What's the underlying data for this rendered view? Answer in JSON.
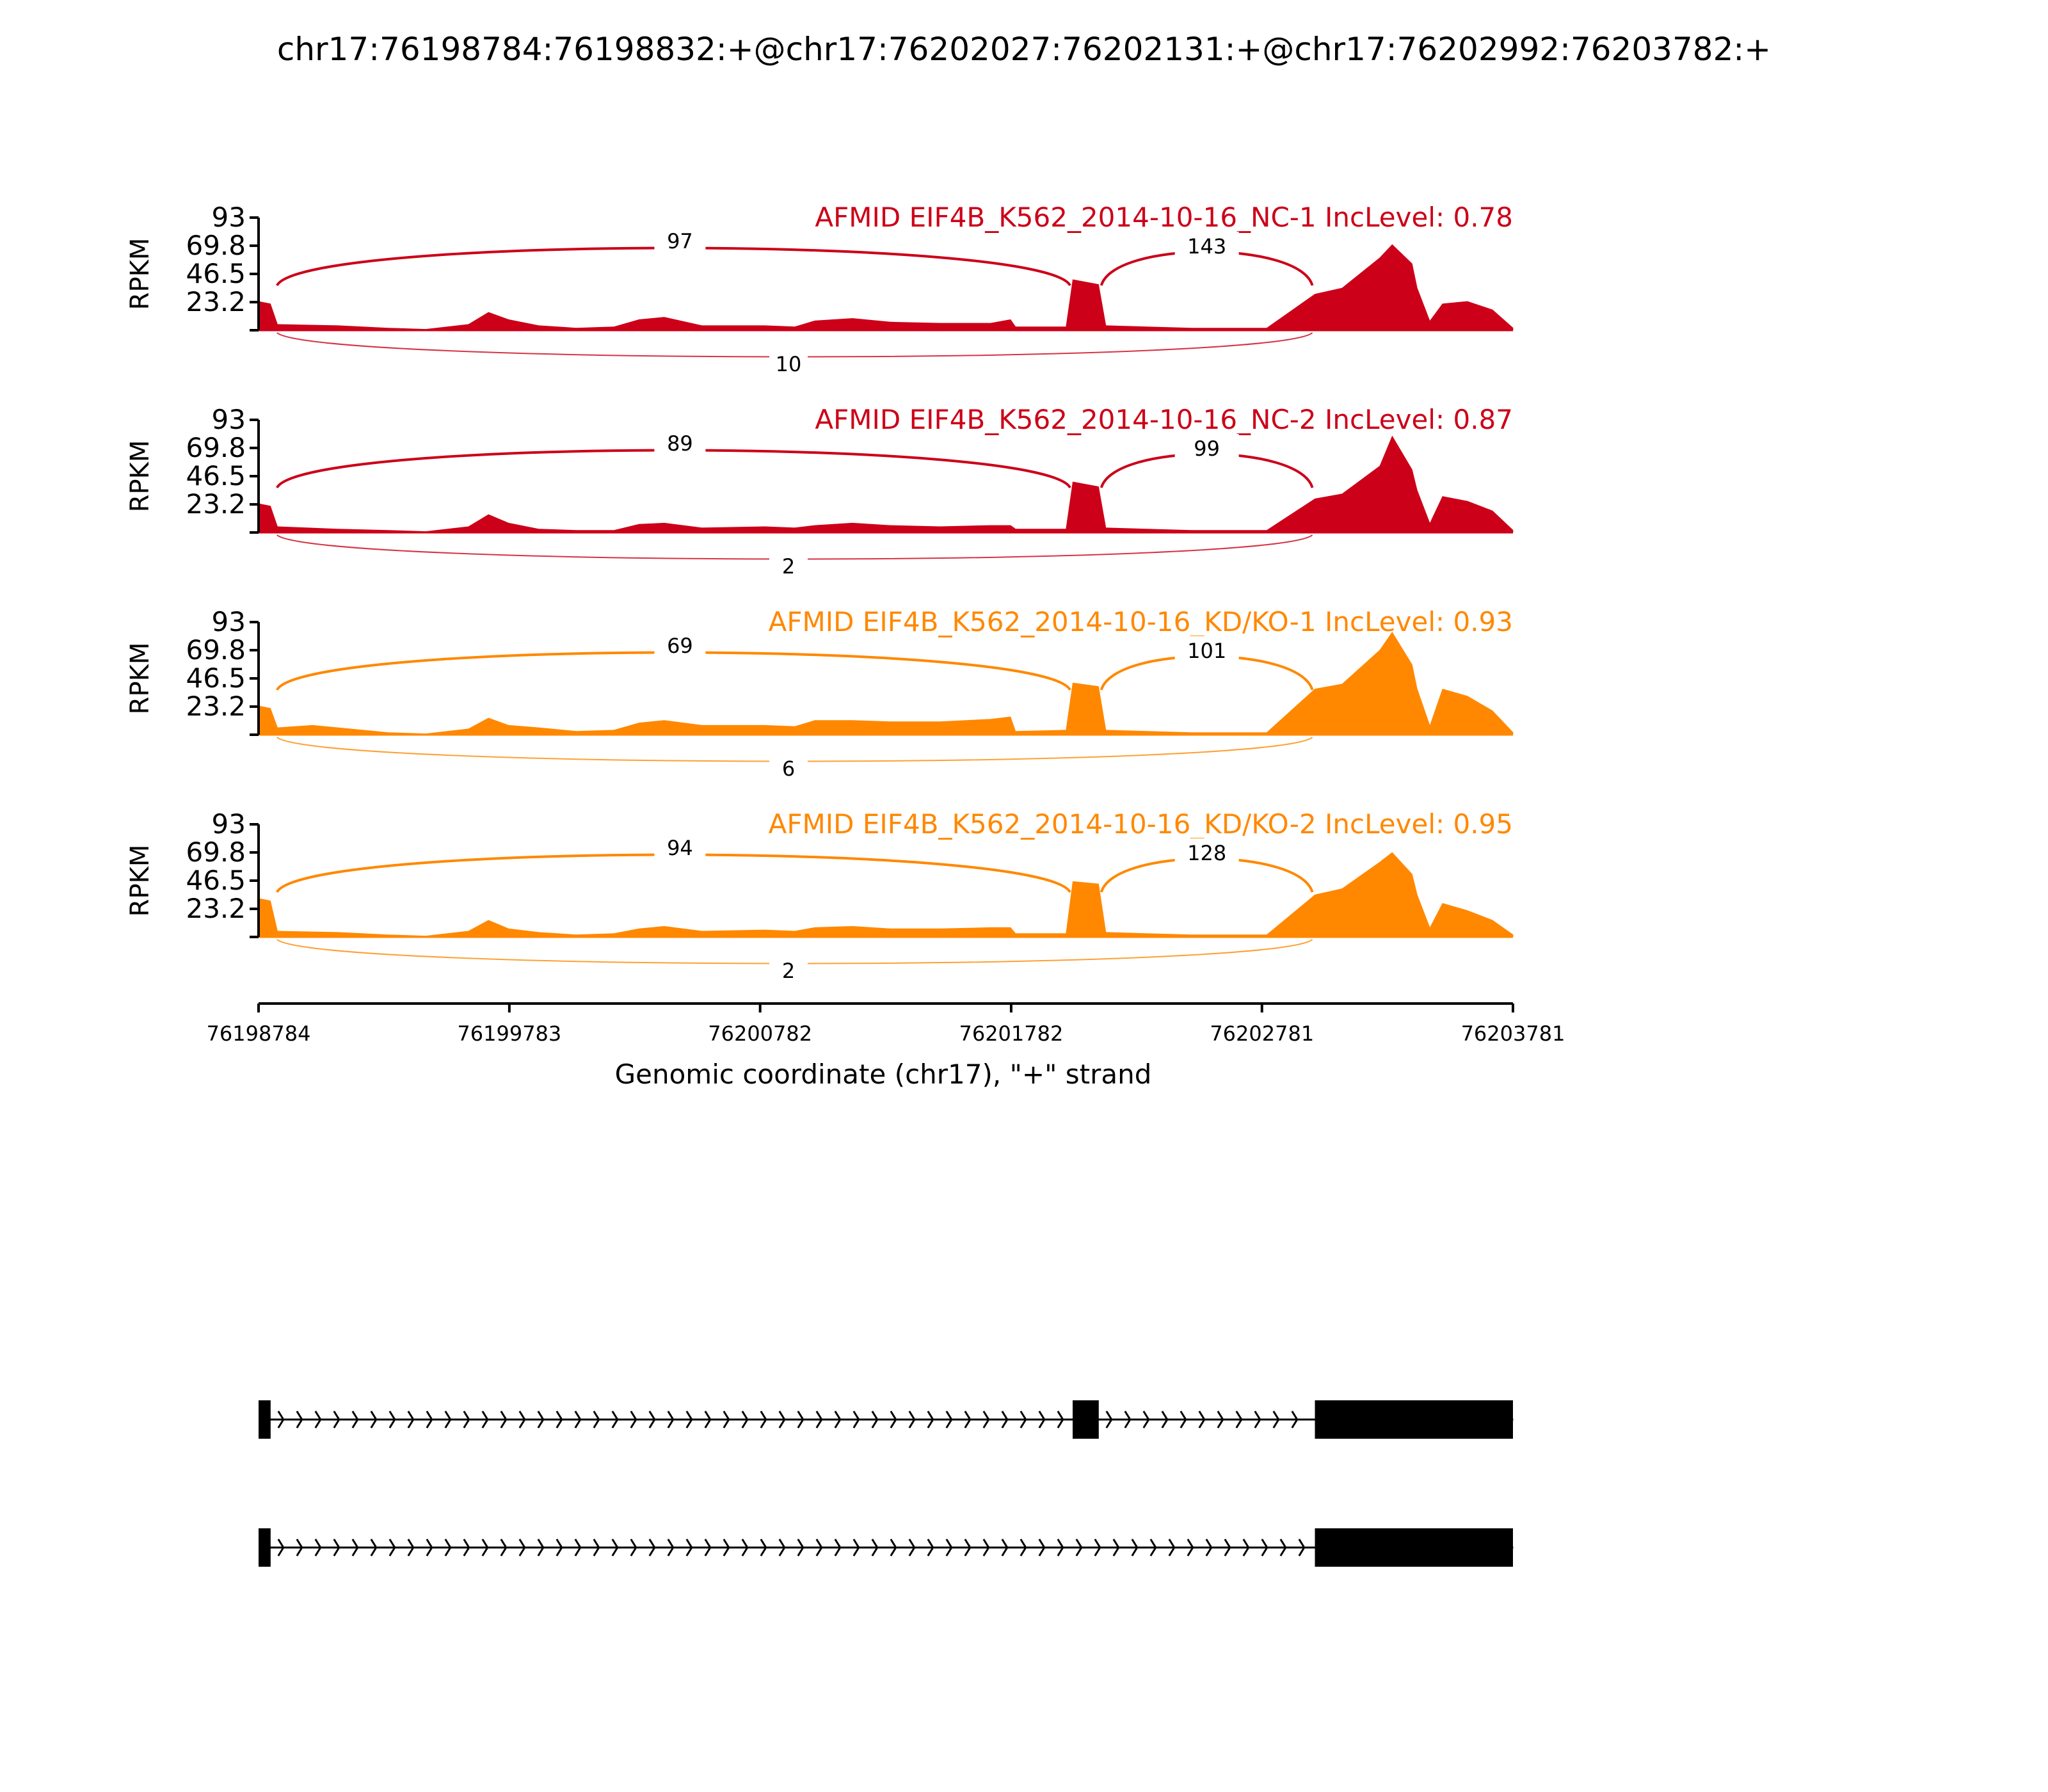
{
  "chart_data": {
    "type": "area",
    "title": "chr17:76198784:76198832:+@chr17:76202027:76202131:+@chr17:76202992:76203782:+",
    "ylabel": "RPKM",
    "xlabel": "Genomic coordinate (chr17), \"+\" strand",
    "xlim": [
      76198784,
      76203781
    ],
    "ylim": [
      0,
      93
    ],
    "yticks": [
      "93",
      "69.8",
      "46.5",
      "23.2"
    ],
    "xticks": [
      "76198784",
      "76199783",
      "76200782",
      "76201782",
      "76202781",
      "76203781"
    ],
    "exons": [
      {
        "start": 76198784,
        "end": 76198832
      },
      {
        "start": 76202027,
        "end": 76202131
      },
      {
        "start": 76202992,
        "end": 76203782
      }
    ],
    "colors": {
      "NC": "#cc0018",
      "KD": "#ff8800",
      "gene": "#000000"
    },
    "tracks": [
      {
        "name": "AFMID EIF4B_K562_2014-10-16_NC-1 IncLevel: 0.78",
        "color": "#cc0018",
        "junctions": {
          "skip": "97",
          "inc": "143",
          "exc": "10"
        },
        "coverage": [
          [
            76198784,
            24
          ],
          [
            76198832,
            22
          ],
          [
            76198860,
            5
          ],
          [
            76199100,
            4
          ],
          [
            76199300,
            2
          ],
          [
            76199450,
            1
          ],
          [
            76199620,
            5
          ],
          [
            76199700,
            15
          ],
          [
            76199780,
            9
          ],
          [
            76199900,
            4
          ],
          [
            76200050,
            2
          ],
          [
            76200200,
            3
          ],
          [
            76200300,
            9
          ],
          [
            76200400,
            11
          ],
          [
            76200550,
            4
          ],
          [
            76200800,
            4
          ],
          [
            76200920,
            3
          ],
          [
            76201000,
            8
          ],
          [
            76201150,
            10
          ],
          [
            76201300,
            7
          ],
          [
            76201500,
            6
          ],
          [
            76201700,
            6
          ],
          [
            76201780,
            9
          ],
          [
            76201800,
            3
          ],
          [
            76202000,
            3
          ],
          [
            76202027,
            42
          ],
          [
            76202131,
            38
          ],
          [
            76202160,
            4
          ],
          [
            76202500,
            2
          ],
          [
            76202800,
            2
          ],
          [
            76202992,
            30
          ],
          [
            76203100,
            35
          ],
          [
            76203250,
            60
          ],
          [
            76203300,
            71
          ],
          [
            76203380,
            55
          ],
          [
            76203400,
            35
          ],
          [
            76203450,
            8
          ],
          [
            76203500,
            22
          ],
          [
            76203600,
            24
          ],
          [
            76203700,
            17
          ],
          [
            76203782,
            2
          ]
        ]
      },
      {
        "name": "AFMID EIF4B_K562_2014-10-16_NC-2 IncLevel: 0.87",
        "color": "#cc0018",
        "junctions": {
          "skip": "89",
          "inc": "99",
          "exc": "2"
        },
        "coverage": [
          [
            76198784,
            24
          ],
          [
            76198832,
            22
          ],
          [
            76198860,
            5
          ],
          [
            76199100,
            3
          ],
          [
            76199300,
            2
          ],
          [
            76199450,
            1
          ],
          [
            76199620,
            5
          ],
          [
            76199700,
            15
          ],
          [
            76199780,
            8
          ],
          [
            76199900,
            3
          ],
          [
            76200050,
            2
          ],
          [
            76200200,
            2
          ],
          [
            76200300,
            7
          ],
          [
            76200400,
            8
          ],
          [
            76200550,
            4
          ],
          [
            76200800,
            5
          ],
          [
            76200920,
            4
          ],
          [
            76201000,
            6
          ],
          [
            76201150,
            8
          ],
          [
            76201300,
            6
          ],
          [
            76201500,
            5
          ],
          [
            76201700,
            6
          ],
          [
            76201780,
            6
          ],
          [
            76201800,
            3
          ],
          [
            76202000,
            3
          ],
          [
            76202027,
            42
          ],
          [
            76202131,
            38
          ],
          [
            76202160,
            4
          ],
          [
            76202500,
            2
          ],
          [
            76202800,
            2
          ],
          [
            76202992,
            28
          ],
          [
            76203100,
            32
          ],
          [
            76203250,
            55
          ],
          [
            76203300,
            80
          ],
          [
            76203380,
            52
          ],
          [
            76203400,
            35
          ],
          [
            76203450,
            8
          ],
          [
            76203500,
            30
          ],
          [
            76203600,
            26
          ],
          [
            76203700,
            18
          ],
          [
            76203782,
            2
          ]
        ]
      },
      {
        "name": "AFMID EIF4B_K562_2014-10-16_KD/KO-1 IncLevel: 0.93",
        "color": "#ff8800",
        "junctions": {
          "skip": "69",
          "inc": "101",
          "exc": "6"
        },
        "coverage": [
          [
            76198784,
            24
          ],
          [
            76198832,
            22
          ],
          [
            76198860,
            6
          ],
          [
            76199000,
            8
          ],
          [
            76199100,
            6
          ],
          [
            76199300,
            2
          ],
          [
            76199450,
            1
          ],
          [
            76199620,
            5
          ],
          [
            76199700,
            14
          ],
          [
            76199780,
            8
          ],
          [
            76199900,
            6
          ],
          [
            76200050,
            3
          ],
          [
            76200200,
            4
          ],
          [
            76200300,
            10
          ],
          [
            76200400,
            12
          ],
          [
            76200550,
            8
          ],
          [
            76200800,
            8
          ],
          [
            76200920,
            7
          ],
          [
            76201000,
            12
          ],
          [
            76201150,
            12
          ],
          [
            76201300,
            11
          ],
          [
            76201500,
            11
          ],
          [
            76201700,
            13
          ],
          [
            76201780,
            15
          ],
          [
            76201800,
            3
          ],
          [
            76202000,
            4
          ],
          [
            76202027,
            43
          ],
          [
            76202131,
            40
          ],
          [
            76202160,
            4
          ],
          [
            76202500,
            2
          ],
          [
            76202800,
            2
          ],
          [
            76202992,
            38
          ],
          [
            76203100,
            42
          ],
          [
            76203250,
            70
          ],
          [
            76203300,
            85
          ],
          [
            76203380,
            58
          ],
          [
            76203400,
            38
          ],
          [
            76203450,
            8
          ],
          [
            76203500,
            38
          ],
          [
            76203600,
            32
          ],
          [
            76203700,
            20
          ],
          [
            76203782,
            2
          ]
        ]
      },
      {
        "name": "AFMID EIF4B_K562_2014-10-16_KD/KO-2 IncLevel: 0.95",
        "color": "#ff8800",
        "junctions": {
          "skip": "94",
          "inc": "128",
          "exc": "2"
        },
        "coverage": [
          [
            76198784,
            32
          ],
          [
            76198832,
            30
          ],
          [
            76198860,
            5
          ],
          [
            76199100,
            4
          ],
          [
            76199300,
            2
          ],
          [
            76199450,
            1
          ],
          [
            76199620,
            5
          ],
          [
            76199700,
            14
          ],
          [
            76199780,
            7
          ],
          [
            76199900,
            4
          ],
          [
            76200050,
            2
          ],
          [
            76200200,
            3
          ],
          [
            76200300,
            7
          ],
          [
            76200400,
            9
          ],
          [
            76200550,
            5
          ],
          [
            76200800,
            6
          ],
          [
            76200920,
            5
          ],
          [
            76201000,
            8
          ],
          [
            76201150,
            9
          ],
          [
            76201300,
            7
          ],
          [
            76201500,
            7
          ],
          [
            76201700,
            8
          ],
          [
            76201780,
            8
          ],
          [
            76201800,
            3
          ],
          [
            76202000,
            3
          ],
          [
            76202027,
            46
          ],
          [
            76202131,
            44
          ],
          [
            76202160,
            4
          ],
          [
            76202500,
            2
          ],
          [
            76202800,
            2
          ],
          [
            76202992,
            35
          ],
          [
            76203100,
            40
          ],
          [
            76203250,
            62
          ],
          [
            76203300,
            70
          ],
          [
            76203380,
            52
          ],
          [
            76203400,
            35
          ],
          [
            76203450,
            8
          ],
          [
            76203500,
            28
          ],
          [
            76203600,
            22
          ],
          [
            76203700,
            14
          ],
          [
            76203782,
            2
          ]
        ]
      }
    ],
    "transcripts": [
      {
        "exons": [
          [
            76198784,
            76198832
          ],
          [
            76202027,
            76202131
          ],
          [
            76202992,
            76203782
          ]
        ]
      },
      {
        "exons": [
          [
            76198784,
            76198832
          ],
          [
            76202992,
            76203782
          ]
        ]
      }
    ]
  }
}
